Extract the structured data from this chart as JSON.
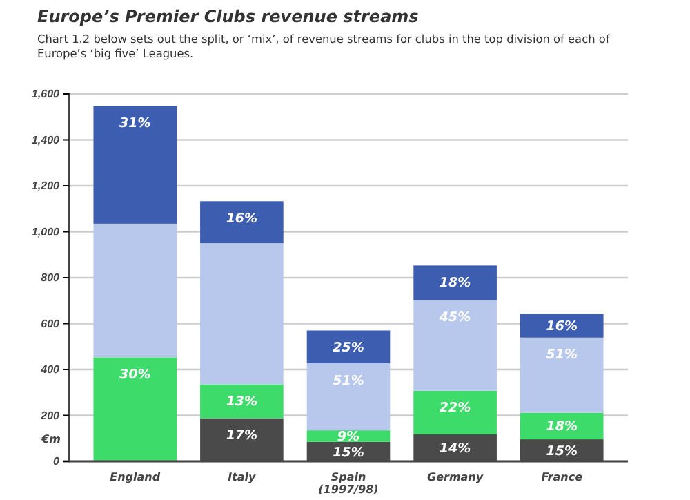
{
  "chart_data": {
    "type": "bar",
    "stacked": true,
    "title": "Europe’s Premier Clubs revenue streams",
    "subtitle": "Chart 1.2 below sets out the split, or ‘mix’, of revenue streams for clubs in the top division of each of Europe’s ‘big five’ Leagues.",
    "ylabel": "€m",
    "categories": [
      "England",
      "Italy",
      "Spain (1997/98)",
      "Germany",
      "France"
    ],
    "series": [
      {
        "color": "#4a4a4a",
        "values": [
          null,
          188,
          85,
          118,
          96
        ]
      },
      {
        "color": "#3ddc6a",
        "values": [
          453,
          147,
          50,
          190,
          116
        ]
      },
      {
        "color": "#b8c8ec",
        "values": [
          582,
          615,
          292,
          395,
          327
        ]
      },
      {
        "color": "#3d5db0",
        "values": [
          513,
          183,
          143,
          150,
          103
        ]
      }
    ],
    "annotations": [
      {
        "text": "30%",
        "x": "England",
        "y": 453
      },
      {
        "text": "31%",
        "x": "England",
        "y": 1548
      },
      {
        "text": "17%",
        "x": "Italy",
        "y": 188
      },
      {
        "text": "13%",
        "x": "Italy",
        "y": 335
      },
      {
        "text": "16%",
        "x": "Italy",
        "y": 1133
      },
      {
        "text": "15%",
        "x": "Spain (1997/98)",
        "y": 85
      },
      {
        "text": "9%",
        "x": "Spain (1997/98)",
        "y": 135
      },
      {
        "text": "51%",
        "x": "Spain (1997/98)",
        "y": 427
      },
      {
        "text": "25%",
        "x": "Spain (1997/98)",
        "y": 570
      },
      {
        "text": "14%",
        "x": "Germany",
        "y": 118
      },
      {
        "text": "22%",
        "x": "Germany",
        "y": 308
      },
      {
        "text": "45%",
        "x": "Germany",
        "y": 703
      },
      {
        "text": "18%",
        "x": "Germany",
        "y": 853
      },
      {
        "text": "15%",
        "x": "France",
        "y": 96
      },
      {
        "text": "18%",
        "x": "France",
        "y": 212
      },
      {
        "text": "51%",
        "x": "France",
        "y": 539
      },
      {
        "text": "16%",
        "x": "France",
        "y": 642
      }
    ],
    "ylim": [
      0,
      1600
    ],
    "yticks": [
      {
        "value": 0,
        "label": "0"
      },
      {
        "value": 200,
        "label": "200"
      },
      {
        "value": 400,
        "label": "400"
      },
      {
        "value": 600,
        "label": "600"
      },
      {
        "value": 800,
        "label": "800"
      },
      {
        "value": 1000,
        "label": "1,000"
      },
      {
        "value": 1200,
        "label": "1,200"
      },
      {
        "value": 1400,
        "label": "1,400"
      },
      {
        "value": 1600,
        "label": "1,600"
      }
    ],
    "grid": "y"
  }
}
